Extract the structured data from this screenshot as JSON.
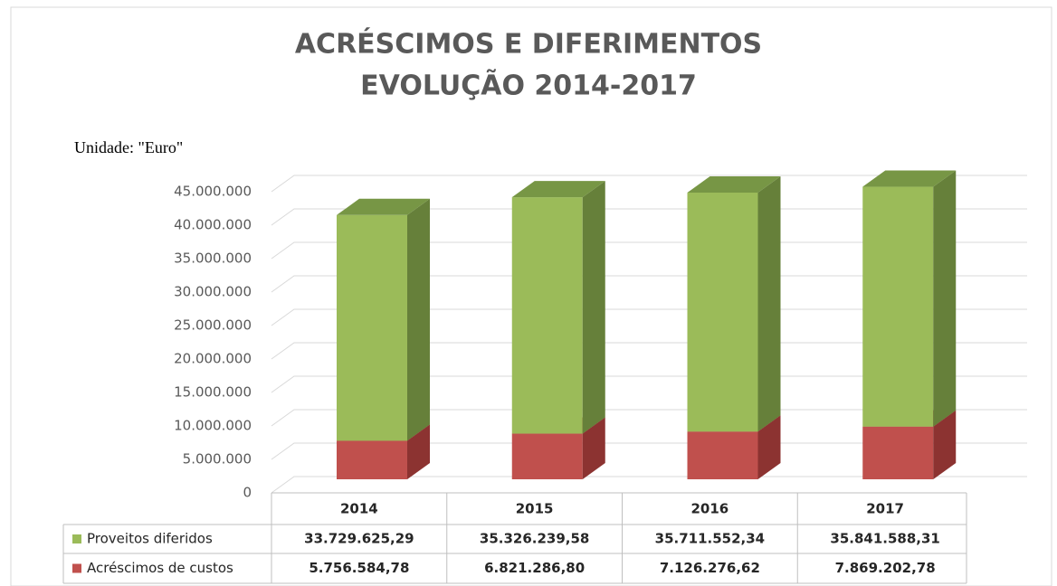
{
  "chart_data": {
    "type": "stacked_bar_3d",
    "title": "ACRÉSCIMOS E DIFERIMENTOS",
    "subtitle": "EVOLUÇÃO 2014-2017",
    "unit_label": "Unidade: \"Euro\"",
    "categories": [
      "2014",
      "2015",
      "2016",
      "2017"
    ],
    "series": [
      {
        "name": "Acréscimos de custos",
        "color": "#c0504d",
        "side_color": "#8c3331",
        "top_color": "#a0403d",
        "values": [
          5756584.78,
          6821286.8,
          7126276.62,
          7869202.78
        ],
        "value_labels": [
          "5.756.584,78",
          "6.821.286,80",
          "7.126.276,62",
          "7.869.202,78"
        ]
      },
      {
        "name": "Proveitos diferidos",
        "color": "#9bbb59",
        "side_color": "#66803a",
        "top_color": "#779645",
        "values": [
          33729625.29,
          35326239.58,
          35711552.34,
          35841588.31
        ],
        "value_labels": [
          "33.729.625,29",
          "35.326.239,58",
          "35.711.552,34",
          "35.841.588,31"
        ]
      }
    ],
    "ylim": [
      0,
      45000000
    ],
    "yticks": [
      0,
      {
        "value": 5000000,
        "label": "5.000.000"
      },
      {
        "value": 10000000,
        "label": "10.000.000"
      },
      {
        "value": 15000000,
        "label": "15.000.000"
      },
      {
        "value": 20000000,
        "label": "20.000.000"
      },
      {
        "value": 25000000,
        "label": "25.000.000"
      },
      {
        "value": 30000000,
        "label": "30.000.000"
      },
      {
        "value": 35000000,
        "label": "35.000.000"
      },
      {
        "value": 40000000,
        "label": "40.000.000"
      },
      {
        "value": 45000000,
        "label": "45.000.000"
      }
    ],
    "grid": true
  }
}
